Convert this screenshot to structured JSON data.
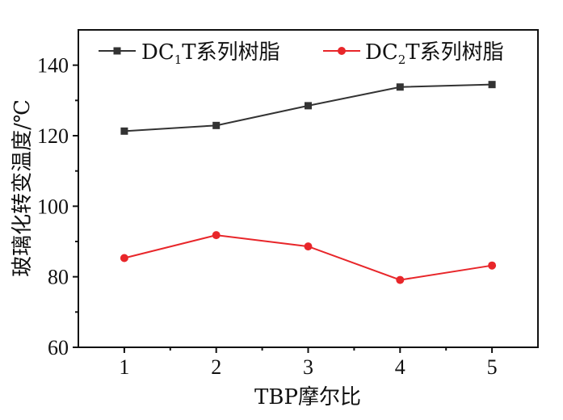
{
  "chart_data": {
    "type": "line",
    "x": [
      1,
      2,
      3,
      4,
      5
    ],
    "xlabel": "TBP摩尔比",
    "ylabel": "玻璃化转变温度/℃",
    "xlim": [
      0.5,
      5.5
    ],
    "ylim": [
      60,
      150
    ],
    "xticks": [
      "1",
      "2",
      "3",
      "4",
      "5"
    ],
    "yticks": [
      "60",
      "80",
      "100",
      "120",
      "140"
    ],
    "grid": false,
    "legend_position": "top",
    "series": [
      {
        "name_prefix": "DC",
        "name_sub": "1",
        "name_suffix": "T系列树脂",
        "values": [
          121.3,
          122.9,
          128.5,
          133.8,
          134.5
        ],
        "color": "#333333",
        "marker": "square"
      },
      {
        "name_prefix": "DC",
        "name_sub": "2",
        "name_suffix": "T系列树脂",
        "values": [
          85.3,
          91.8,
          88.6,
          79.1,
          83.2
        ],
        "color": "#e8262a",
        "marker": "circle"
      }
    ]
  }
}
